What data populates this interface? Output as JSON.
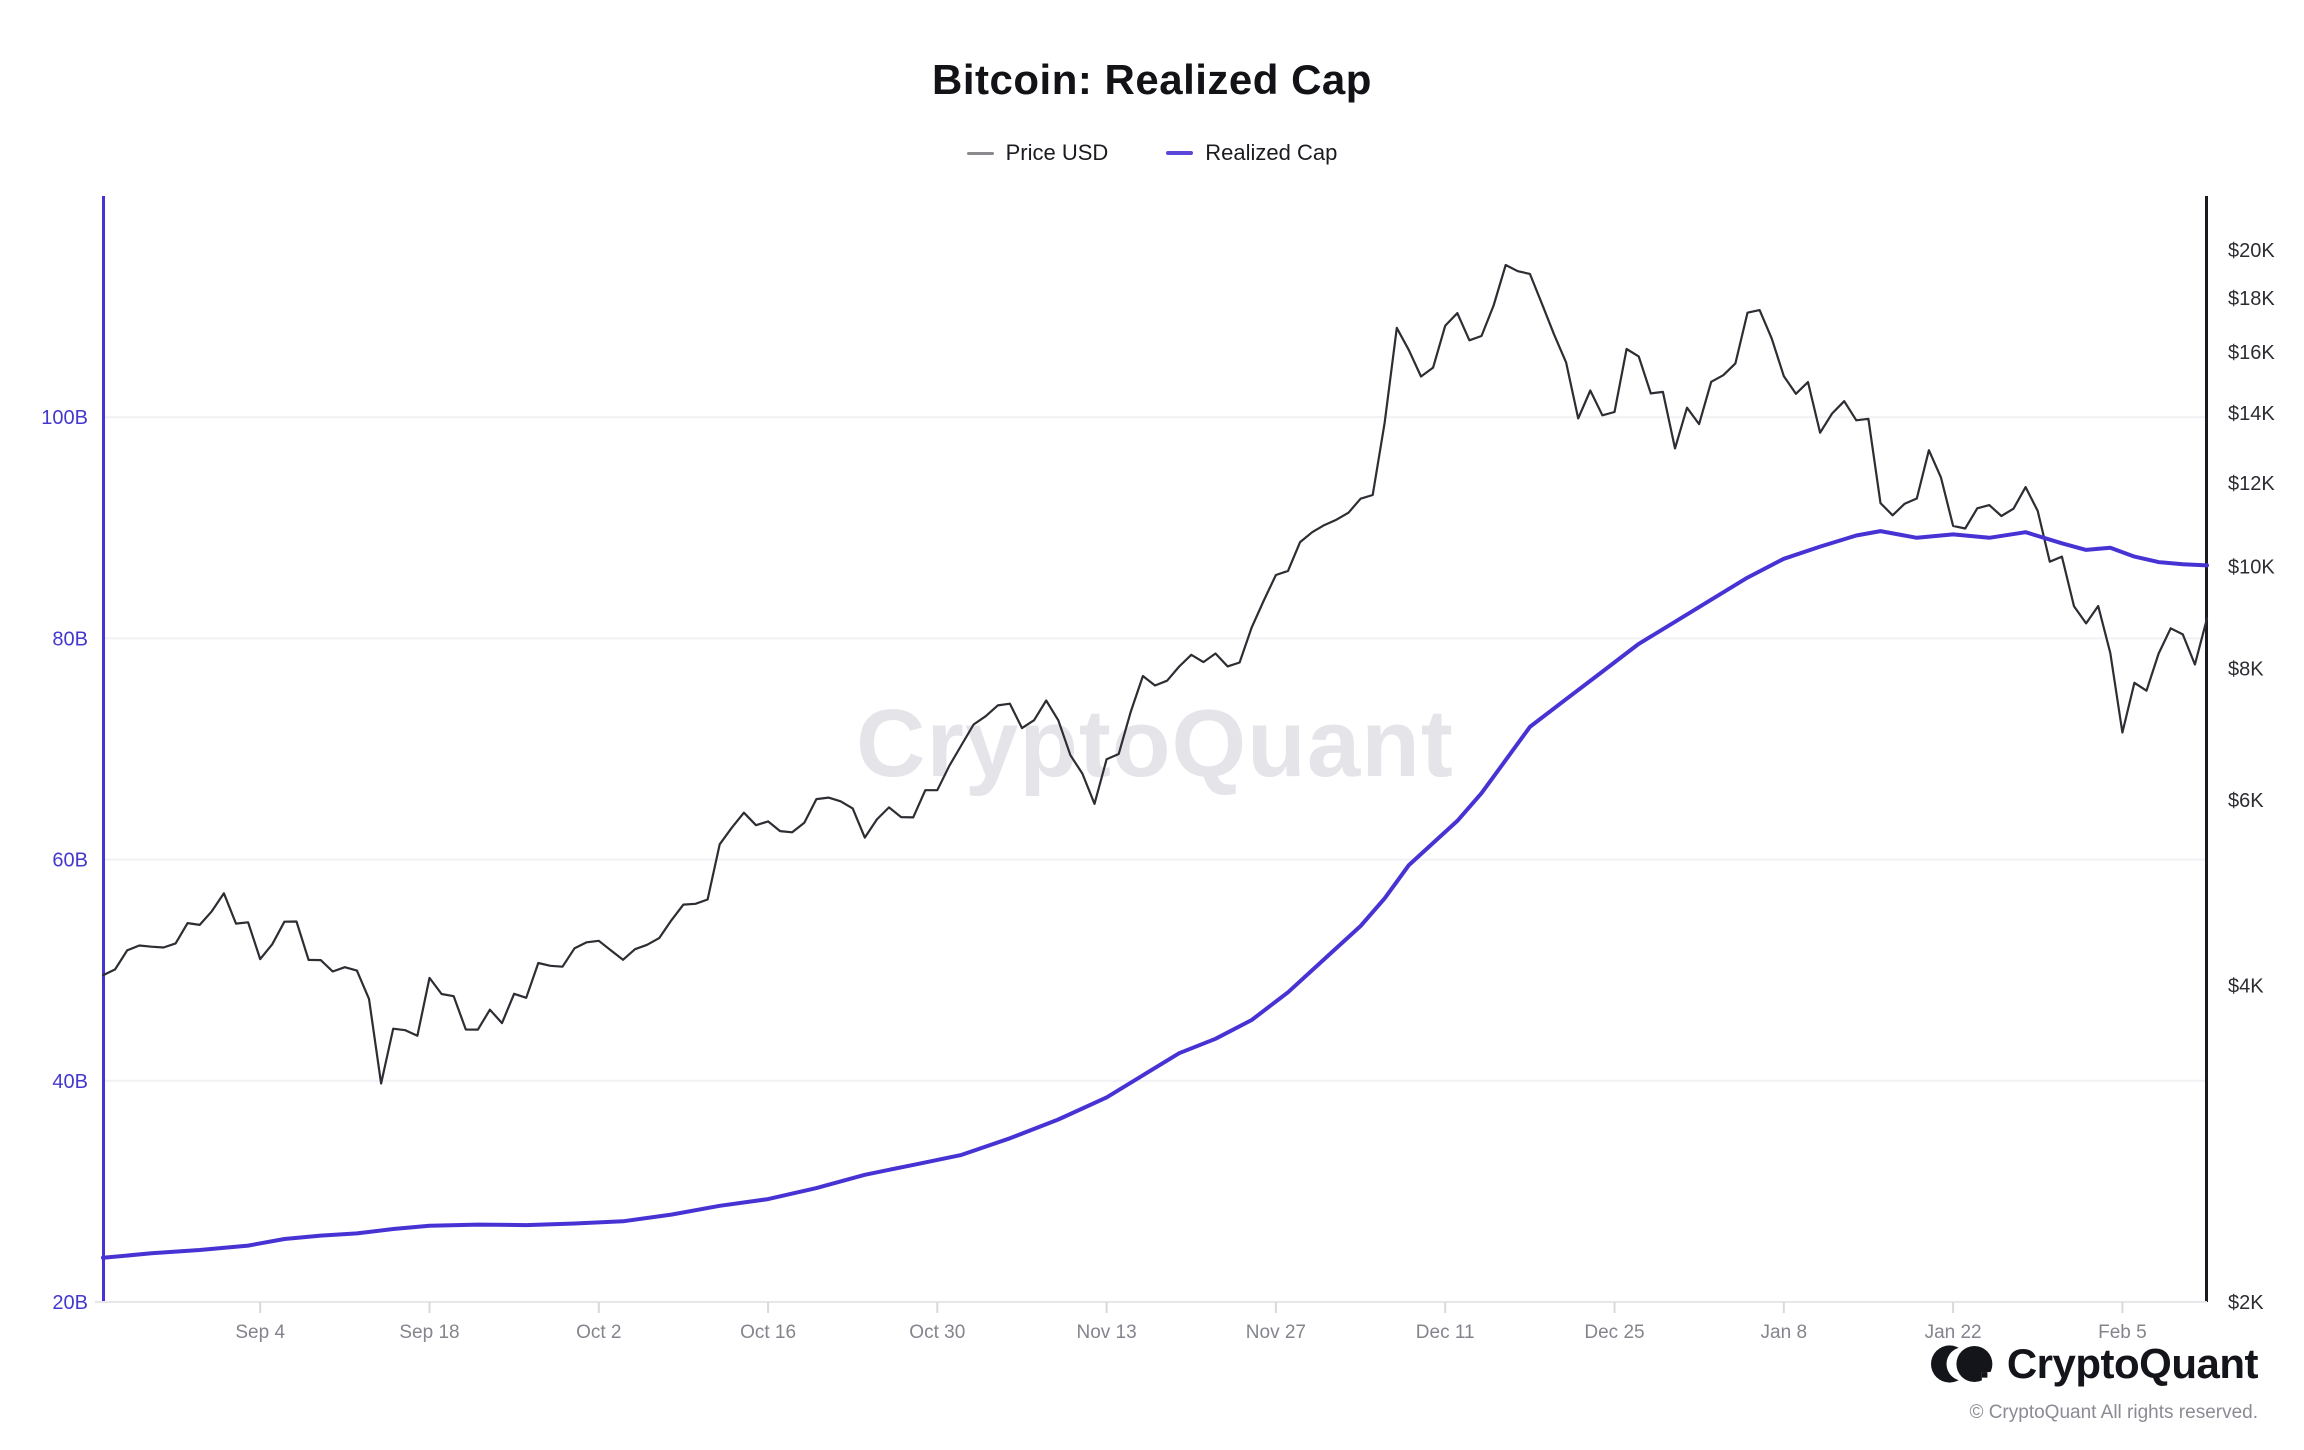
{
  "title": "Bitcoin: Realized Cap",
  "legend": [
    {
      "label": "Price USD",
      "swatch_color": "#8a8a8f"
    },
    {
      "label": "Realized Cap",
      "swatch_color": "#5b48d9"
    }
  ],
  "watermark": "CryptoQuant",
  "footer": {
    "brand": "CryptoQuant",
    "copyright": "© CryptoQuant All rights reserved.",
    "logo_icon": "cryptoquant-logo"
  },
  "chart_data": {
    "type": "line",
    "title": "Bitcoin: Realized Cap",
    "grid": "horizontal-only",
    "legend_position": "top-center",
    "x_ticks": [
      {
        "i": 13,
        "label": "Sep 4"
      },
      {
        "i": 27,
        "label": "Sep 18"
      },
      {
        "i": 41,
        "label": "Oct 2"
      },
      {
        "i": 55,
        "label": "Oct 16"
      },
      {
        "i": 69,
        "label": "Oct 30"
      },
      {
        "i": 83,
        "label": "Nov 13"
      },
      {
        "i": 97,
        "label": "Nov 27"
      },
      {
        "i": 111,
        "label": "Dec 11"
      },
      {
        "i": 125,
        "label": "Dec 25"
      },
      {
        "i": 139,
        "label": "Jan 8"
      },
      {
        "i": 153,
        "label": "Jan 22"
      },
      {
        "i": 167,
        "label": "Feb 5"
      }
    ],
    "left_axis": {
      "suffix": "B",
      "ticks": [
        100,
        80,
        60,
        40,
        20
      ],
      "grid": [
        100,
        80,
        60,
        40
      ],
      "range": [
        20,
        120
      ],
      "scale": "linear",
      "color": "#4538cf",
      "units": "billions USD"
    },
    "right_axis": {
      "ticks": [
        "$20K",
        "$18K",
        "$16K",
        "$14K",
        "$12K",
        "$10K",
        "$8K",
        "$6K",
        "$4K",
        "$2K"
      ],
      "values": [
        20000,
        18000,
        16000,
        14000,
        12000,
        10000,
        8000,
        6000,
        4000,
        2000
      ],
      "range": [
        2000,
        22500
      ],
      "scale": "log",
      "color": "#2c2c33"
    },
    "series": [
      {
        "name": "Price USD",
        "axis": "right",
        "color": "#2d2d33",
        "width": 2.2,
        "values": [
          4089,
          4141,
          4318,
          4364,
          4352,
          4345,
          4384,
          4583,
          4565,
          4703,
          4892,
          4578,
          4591,
          4236,
          4376,
          4597,
          4599,
          4228,
          4226,
          4122,
          4161,
          4130,
          3882,
          3226,
          3637,
          3625,
          3582,
          4065,
          3924,
          3905,
          3631,
          3630,
          3792,
          3682,
          3926,
          3892,
          4200,
          4174,
          4166,
          4338,
          4394,
          4409,
          4317,
          4229,
          4328,
          4370,
          4435,
          4610,
          4772,
          4781,
          4826,
          5446,
          5647,
          5835,
          5678,
          5725,
          5605,
          5590,
          5708,
          6011,
          6031,
          5983,
          5890,
          5526,
          5750,
          5904,
          5780,
          5775,
          6130,
          6130,
          6468,
          6767,
          7078,
          7207,
          7379,
          7407,
          7022,
          7144,
          7459,
          7143,
          6618,
          6357,
          5950,
          6559,
          6635,
          7280,
          7871,
          7708,
          7790,
          8036,
          8244,
          8114,
          8268,
          8038,
          8106,
          8754,
          9284,
          9818,
          9906,
          10550,
          10780,
          10950,
          11080,
          11250,
          11600,
          11696,
          13708,
          16858,
          16057,
          15158,
          15455,
          16936,
          17415,
          16408,
          16564,
          17706,
          19345,
          19086,
          18972,
          17776,
          16624,
          15632,
          13831,
          14699,
          13925,
          14026,
          16099,
          15838,
          14606,
          14656,
          12952,
          14156,
          13657,
          14982,
          15201,
          15599,
          17429,
          17527,
          16477,
          15170,
          14595,
          14973,
          13405,
          13980,
          14360,
          13772,
          13819,
          11490,
          11188,
          11474,
          11607,
          12899,
          12150,
          10931,
          10868,
          11359,
          11440,
          11171,
          11350,
          11900,
          11296,
          10107,
          10221,
          9170,
          8830,
          9174,
          8277,
          6955,
          7754,
          7621,
          8265,
          8736,
          8621,
          8070,
          8926
        ]
      },
      {
        "name": "Realized Cap",
        "axis": "left",
        "color": "#4733d4",
        "width": 4,
        "points": [
          [
            0,
            24.0
          ],
          [
            4,
            24.4
          ],
          [
            8,
            24.7
          ],
          [
            12,
            25.1
          ],
          [
            15,
            25.7
          ],
          [
            18,
            26.0
          ],
          [
            21,
            26.2
          ],
          [
            24,
            26.6
          ],
          [
            27,
            26.9
          ],
          [
            31,
            27.0
          ],
          [
            35,
            26.95
          ],
          [
            39,
            27.1
          ],
          [
            43,
            27.3
          ],
          [
            47,
            27.9
          ],
          [
            51,
            28.7
          ],
          [
            55,
            29.3
          ],
          [
            59,
            30.3
          ],
          [
            63,
            31.5
          ],
          [
            67,
            32.4
          ],
          [
            71,
            33.3
          ],
          [
            75,
            34.8
          ],
          [
            79,
            36.5
          ],
          [
            83,
            38.5
          ],
          [
            86,
            40.5
          ],
          [
            89,
            42.5
          ],
          [
            92,
            43.8
          ],
          [
            95,
            45.5
          ],
          [
            98,
            48.0
          ],
          [
            101,
            51.0
          ],
          [
            104,
            54.0
          ],
          [
            106,
            56.5
          ],
          [
            108,
            59.5
          ],
          [
            110,
            61.5
          ],
          [
            112,
            63.5
          ],
          [
            114,
            66.0
          ],
          [
            116,
            69.0
          ],
          [
            118,
            72.0
          ],
          [
            121,
            74.5
          ],
          [
            124,
            77.0
          ],
          [
            127,
            79.5
          ],
          [
            130,
            81.5
          ],
          [
            133,
            83.5
          ],
          [
            136,
            85.5
          ],
          [
            139,
            87.2
          ],
          [
            142,
            88.3
          ],
          [
            145,
            89.3
          ],
          [
            147,
            89.7
          ],
          [
            150,
            89.1
          ],
          [
            153,
            89.4
          ],
          [
            156,
            89.1
          ],
          [
            159,
            89.6
          ],
          [
            162,
            88.6
          ],
          [
            164,
            88.0
          ],
          [
            166,
            88.2
          ],
          [
            168,
            87.4
          ],
          [
            170,
            86.9
          ],
          [
            172,
            86.7
          ],
          [
            174,
            86.6
          ]
        ]
      }
    ]
  }
}
